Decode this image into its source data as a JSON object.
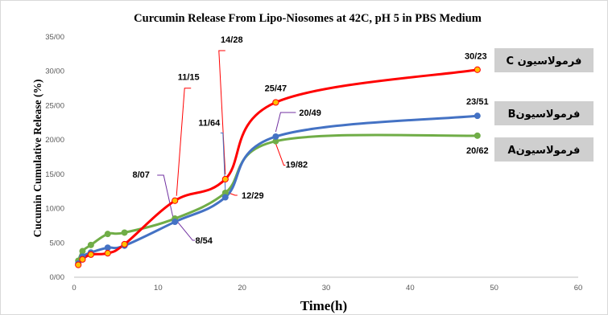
{
  "chart_data": {
    "type": "line",
    "title": "Curcumin Release From Lipo-Niosomes at 42C, pH 5 in PBS Medium",
    "xlabel": "Time(h)",
    "ylabel": "Cucumin Cumulative Release (%)",
    "xlim": [
      0,
      60
    ],
    "ylim": [
      0,
      35
    ],
    "x_ticks": [
      "0",
      "10",
      "20",
      "30",
      "40",
      "50",
      "60"
    ],
    "y_ticks": [
      "0/00",
      "5/00",
      "10/00",
      "15/00",
      "20/00",
      "25/00",
      "30/00",
      "35/00"
    ],
    "grid": false,
    "series": [
      {
        "name": "فرمولاسیون C",
        "color": "#ff0000",
        "marker_color": "#ffc000",
        "x": [
          0.5,
          1,
          2,
          4,
          6,
          12,
          18,
          24,
          48
        ],
        "y": [
          1.8,
          2.6,
          3.3,
          3.5,
          4.8,
          11.15,
          14.28,
          25.47,
          30.23
        ]
      },
      {
        "name": "فرمولاسیون B",
        "color": "#4472c4",
        "marker_color": "#4472c4",
        "x": [
          0.5,
          1,
          2,
          4,
          6,
          12,
          18,
          24,
          48
        ],
        "y": [
          2.0,
          3.0,
          3.6,
          4.3,
          4.6,
          8.07,
          11.64,
          20.49,
          23.51
        ]
      },
      {
        "name": "فرمولاسیون A",
        "color": "#70ad47",
        "marker_color": "#70ad47",
        "x": [
          0.5,
          1,
          2,
          4,
          6,
          12,
          18,
          24,
          48
        ],
        "y": [
          2.4,
          3.8,
          4.7,
          6.3,
          6.5,
          8.54,
          12.29,
          19.82,
          20.62
        ]
      }
    ],
    "data_labels": [
      {
        "text": "30/23",
        "x": 48,
        "y": 30.23
      },
      {
        "text": "25/47",
        "x": 24,
        "y": 25.47
      },
      {
        "text": "14/28",
        "x": 18,
        "y": 14.28
      },
      {
        "text": "11/15",
        "x": 12,
        "y": 11.15
      },
      {
        "text": "23/51",
        "x": 48,
        "y": 23.51
      },
      {
        "text": "20/49",
        "x": 24,
        "y": 20.49
      },
      {
        "text": "11/64",
        "x": 18,
        "y": 11.64
      },
      {
        "text": "8/07",
        "x": 12,
        "y": 8.07
      },
      {
        "text": "20/62",
        "x": 48,
        "y": 20.62
      },
      {
        "text": "19/82",
        "x": 24,
        "y": 19.82
      },
      {
        "text": "12/29",
        "x": 18,
        "y": 12.29
      },
      {
        "text": "8/54",
        "x": 12,
        "y": 8.54
      }
    ],
    "legend": [
      {
        "label": "فرمولاسیون C",
        "series": "C"
      },
      {
        "label": "فرمولاسیونB",
        "series": "B"
      },
      {
        "label": "فرمولاسیونA",
        "series": "A"
      }
    ],
    "legend_placement": "right"
  }
}
